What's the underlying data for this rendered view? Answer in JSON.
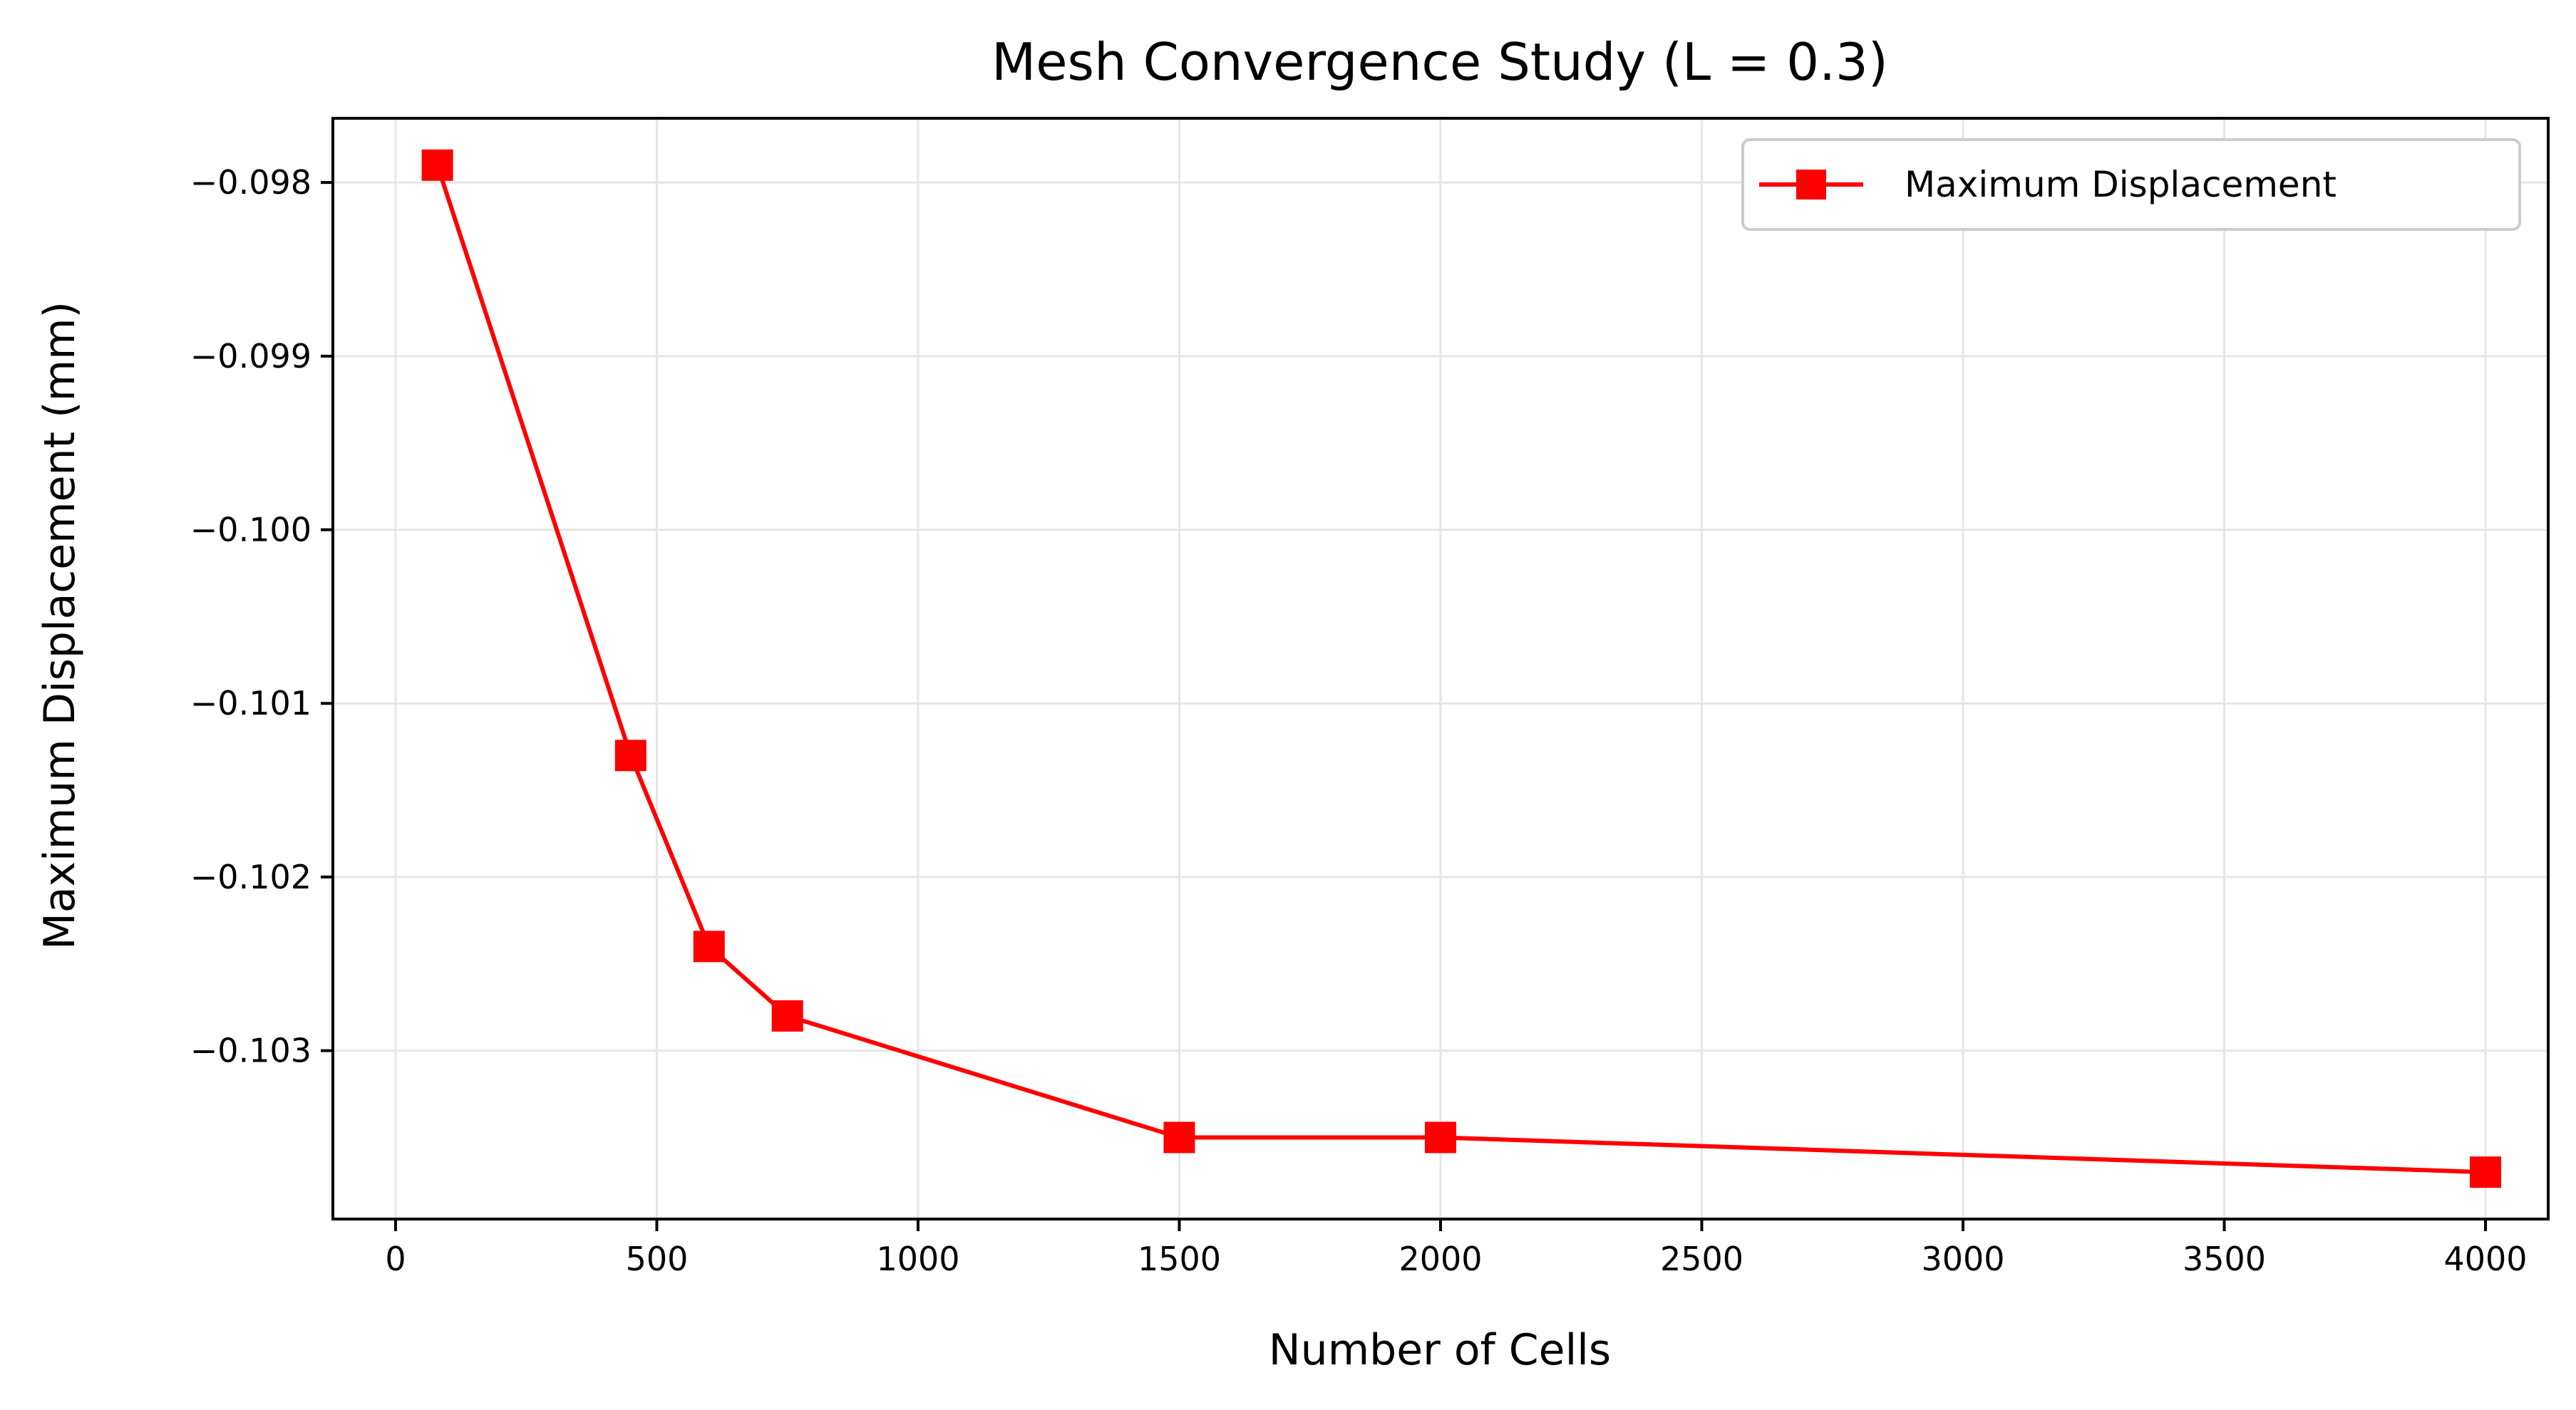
{
  "chart_data": {
    "type": "line",
    "title": "Mesh Convergence Study (L = 0.3)",
    "xlabel": "Number of Cells",
    "ylabel": "Maximum Displacement (mm)",
    "xlim": [
      -120,
      4120
    ],
    "ylim": [
      -0.10397,
      -0.09763
    ],
    "xticks": [
      0,
      500,
      1000,
      1500,
      2000,
      2500,
      3000,
      3500,
      4000
    ],
    "xtick_labels": [
      "0",
      "500",
      "1000",
      "1500",
      "2000",
      "2500",
      "3000",
      "3500",
      "4000"
    ],
    "yticks": [
      -0.098,
      -0.099,
      -0.1,
      -0.101,
      -0.102,
      -0.103
    ],
    "ytick_labels": [
      "−0.098",
      "−0.099",
      "−0.100",
      "−0.101",
      "−0.102",
      "−0.103"
    ],
    "grid": true,
    "legend_position": "top-right",
    "series": [
      {
        "name": "Maximum Displacement",
        "color": "#ff0000",
        "marker": "square",
        "x": [
          80,
          450,
          600,
          750,
          1500,
          2000,
          4000
        ],
        "y": [
          -0.0979,
          -0.1013,
          -0.1024,
          -0.1028,
          -0.1035,
          -0.1035,
          -0.1037
        ]
      }
    ]
  }
}
